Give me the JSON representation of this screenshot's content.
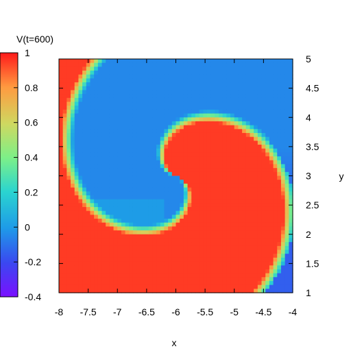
{
  "chart_data": {
    "type": "heatmap",
    "title": "",
    "xlabel": "x",
    "ylabel": "y",
    "colorbar_label": "V(t=600)",
    "xlim": [
      -8,
      -4
    ],
    "ylim": [
      1,
      5
    ],
    "clim": [
      -0.4,
      1
    ],
    "x_ticks": [
      "-8",
      "-7.5",
      "-7",
      "-6.5",
      "-6",
      "-5.5",
      "-5",
      "-4.5",
      "-4"
    ],
    "y_ticks": [
      "1",
      "1.5",
      "2",
      "2.5",
      "3",
      "3.5",
      "4",
      "4.5",
      "5"
    ],
    "colorbar_ticks": [
      "-0.4",
      "-0.2",
      "0",
      "0.2",
      "0.4",
      "0.6",
      "0.8",
      "1"
    ],
    "colormap": "rainbow (purple -> blue -> cyan -> green -> yellow -> orange -> red)",
    "grid": false,
    "description_values": {
      "spiral_center": [
        -6.0,
        3.0
      ],
      "upper_region_value": 0.95,
      "lower_region_value": -0.05,
      "spiral_blue_lobe_value": -0.15
    }
  },
  "colors": {
    "axis": "#000000",
    "background": "#ffffff"
  }
}
